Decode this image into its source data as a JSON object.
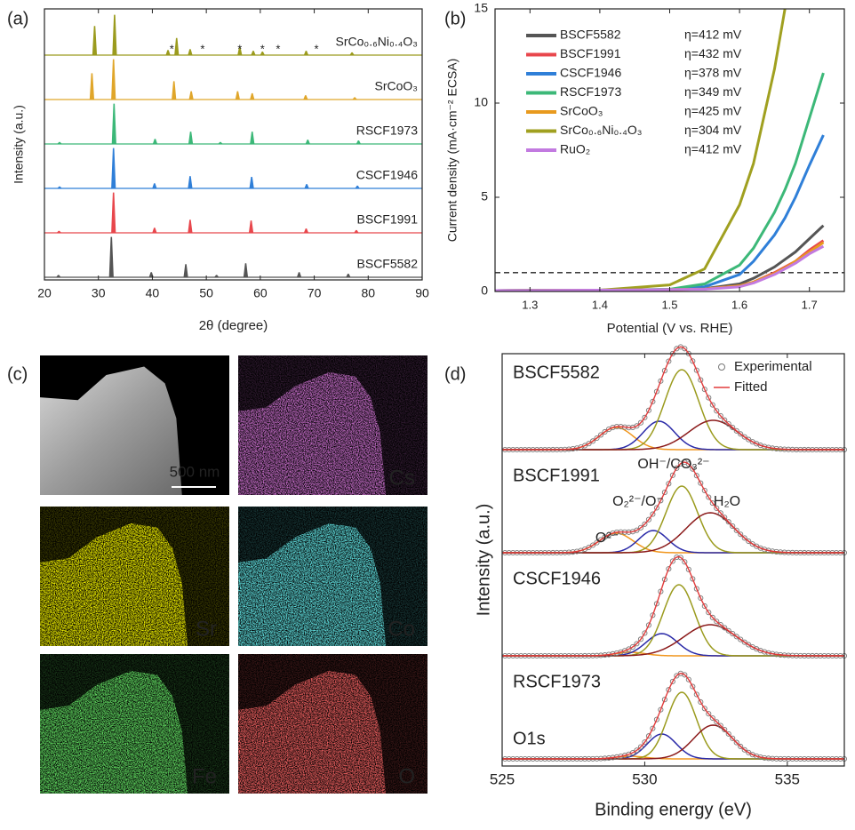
{
  "chart_data": [
    {
      "type": "xrd_stack",
      "panel_label": "(a)",
      "x_label": "2θ (degree)",
      "y_label": "Intensity (a.u.)",
      "xlim": [
        20,
        90
      ],
      "xticks": [
        20,
        30,
        40,
        50,
        60,
        70,
        80,
        90
      ],
      "series": [
        {
          "name": "SrCo₀.₆Ni₀.₄O₃",
          "color": "#9b9b1e",
          "peak_x": [
            29.3,
            33.0,
            42.9,
            44.5,
            47.0,
            56.2,
            58.7,
            60.4,
            68.5,
            77.0
          ],
          "values": [
            0.72,
            1.0,
            0.12,
            0.42,
            0.14,
            0.2,
            0.1,
            0.08,
            0.1,
            0.06
          ]
        },
        {
          "name": "SrCoO₃",
          "color": "#e0a62a",
          "peak_x": [
            28.8,
            32.8,
            44.0,
            47.2,
            55.8,
            58.5,
            68.4,
            77.5
          ],
          "values": [
            0.65,
            1.0,
            0.45,
            0.2,
            0.2,
            0.15,
            0.1,
            0.05
          ]
        },
        {
          "name": "RSCF1973",
          "color": "#3cb878",
          "peak_x": [
            22.8,
            32.9,
            40.5,
            47.1,
            52.6,
            58.5,
            68.8,
            78.2
          ],
          "values": [
            0.04,
            1.0,
            0.12,
            0.3,
            0.04,
            0.3,
            0.1,
            0.08
          ]
        },
        {
          "name": "CSCF1946",
          "color": "#2f7fd8",
          "peak_x": [
            22.8,
            32.8,
            40.4,
            47.0,
            58.4,
            68.6,
            78.0
          ],
          "values": [
            0.04,
            1.0,
            0.12,
            0.3,
            0.28,
            0.1,
            0.06
          ]
        },
        {
          "name": "BSCF1991",
          "color": "#e8474c",
          "peak_x": [
            22.7,
            32.8,
            40.4,
            47.0,
            58.3,
            68.5,
            77.8
          ],
          "values": [
            0.04,
            1.0,
            0.12,
            0.32,
            0.3,
            0.1,
            0.06
          ]
        },
        {
          "name": "BSCF5582",
          "color": "#555555",
          "peak_x": [
            22.6,
            32.4,
            39.8,
            46.2,
            51.9,
            57.3,
            67.2,
            76.3
          ],
          "values": [
            0.05,
            1.0,
            0.12,
            0.32,
            0.05,
            0.34,
            0.12,
            0.08
          ]
        }
      ],
      "annotations": [
        {
          "text": "*",
          "x": 43.6
        },
        {
          "text": "*",
          "x": 49.3
        },
        {
          "text": "*",
          "x": 56.2
        },
        {
          "text": "*",
          "x": 60.4
        },
        {
          "text": "*",
          "x": 63.3
        },
        {
          "text": "*",
          "x": 70.4
        }
      ]
    },
    {
      "type": "line",
      "panel_label": "(b)",
      "x_label": "Potential (V vs. RHE)",
      "y_label": "Current density (mA·cm⁻² ECSA)",
      "xlim": [
        1.25,
        1.75
      ],
      "xticks": [
        1.3,
        1.4,
        1.5,
        1.6,
        1.7
      ],
      "ylim": [
        0,
        15
      ],
      "yticks": [
        0,
        5,
        10,
        15
      ],
      "reference_line": 1,
      "x": [
        1.25,
        1.4,
        1.5,
        1.55,
        1.6,
        1.62,
        1.65,
        1.665,
        1.68,
        1.7,
        1.72
      ],
      "series": [
        {
          "name": "BSCF5582",
          "color": "#555555",
          "overpotential_label": "η=412 mV",
          "values": [
            0.05,
            0.07,
            0.1,
            0.15,
            0.4,
            0.7,
            1.3,
            1.7,
            2.1,
            2.8,
            3.5
          ]
        },
        {
          "name": "BSCF1991",
          "color": "#e8474c",
          "overpotential_label": "η=432 mV",
          "values": [
            0.05,
            0.07,
            0.1,
            0.13,
            0.3,
            0.5,
            1.0,
            1.3,
            1.6,
            2.2,
            2.7
          ]
        },
        {
          "name": "CSCF1946",
          "color": "#2f7fd8",
          "overpotential_label": "η=378 mV",
          "values": [
            0.05,
            0.07,
            0.1,
            0.25,
            0.9,
            1.6,
            3.0,
            3.9,
            5.0,
            6.7,
            8.3
          ]
        },
        {
          "name": "RSCF1973",
          "color": "#3cb878",
          "overpotential_label": "η=349 mV",
          "values": [
            0.05,
            0.07,
            0.12,
            0.4,
            1.4,
            2.3,
            4.2,
            5.4,
            6.8,
            9.2,
            11.6
          ]
        },
        {
          "name": "SrCoO₃",
          "color": "#e89a1e",
          "overpotential_label": "η=425 mV",
          "values": [
            0.05,
            0.07,
            0.1,
            0.13,
            0.3,
            0.5,
            0.95,
            1.25,
            1.6,
            2.1,
            2.6
          ]
        },
        {
          "name": "SrCo₀.₆Ni₀.₄O₃",
          "color": "#a0a020",
          "overpotential_label": "η=304 mV",
          "values": [
            0.05,
            0.07,
            0.35,
            1.2,
            4.6,
            6.8,
            11.8,
            15,
            null,
            null,
            null
          ]
        },
        {
          "name": "RuO₂",
          "color": "#c27ae0",
          "overpotential_label": "η=412 mV",
          "values": [
            0.05,
            0.07,
            0.1,
            0.12,
            0.25,
            0.45,
            0.9,
            1.2,
            1.5,
            2.0,
            2.4
          ]
        }
      ]
    },
    {
      "type": "xps_stack",
      "panel_label": "(d)",
      "x_label": "Binding energy (eV)",
      "y_label": "Intensity (a.u.)",
      "xlim": [
        525,
        537
      ],
      "xticks": [
        525,
        530,
        535
      ],
      "core_level": "O1s",
      "experimental_label": "Experimental",
      "fitted_label": "Fitted",
      "fit_color": "#e23b3b",
      "components": [
        {
          "name": "O²⁻",
          "color": "#f0961e"
        },
        {
          "name": "O₂²⁻/O⁻",
          "color": "#2a2aa8"
        },
        {
          "name": "OH⁻/CO₃²⁻",
          "color": "#9b9b1e"
        },
        {
          "name": "H₂O",
          "color": "#8b1a1a"
        }
      ],
      "spectra": [
        {
          "name": "BSCF5582",
          "centers": [
            529.0,
            530.5,
            531.3,
            532.4
          ],
          "heights": [
            0.25,
            0.32,
            0.9,
            0.33
          ],
          "fwhm": [
            1.4,
            1.3,
            1.4,
            2.0
          ]
        },
        {
          "name": "BSCF1991",
          "centers": [
            529.0,
            530.3,
            531.3,
            532.3
          ],
          "heights": [
            0.22,
            0.25,
            0.75,
            0.45
          ],
          "fwhm": [
            1.4,
            1.2,
            1.3,
            2.0
          ]
        },
        {
          "name": "CSCF1946",
          "centers": [
            529.5,
            530.6,
            531.2,
            532.3
          ],
          "heights": [
            0.04,
            0.25,
            0.8,
            0.35
          ],
          "fwhm": [
            1.2,
            1.3,
            1.3,
            2.2
          ]
        },
        {
          "name": "RSCF1973",
          "centers": [
            529.5,
            530.6,
            531.3,
            532.4
          ],
          "heights": [
            0.03,
            0.28,
            0.75,
            0.38
          ],
          "fwhm": [
            1.2,
            1.2,
            1.2,
            1.6
          ]
        }
      ]
    }
  ],
  "images_panel": {
    "panel_label": "(c)",
    "images": [
      {
        "label": "500 nm",
        "color": "#a8a8a8"
      },
      {
        "label": "Cs",
        "color": "#9a2aa0"
      },
      {
        "label": "Sr",
        "color": "#f0f000"
      },
      {
        "label": "Co",
        "color": "#20c8c8"
      },
      {
        "label": "Fe",
        "color": "#22c822"
      },
      {
        "label": "O",
        "color": "#e82020"
      }
    ]
  }
}
